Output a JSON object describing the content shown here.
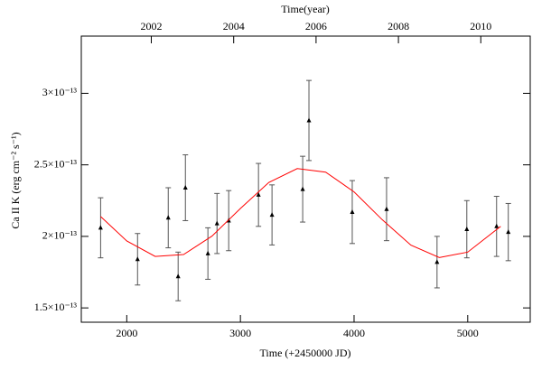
{
  "chart_data": {
    "type": "scatter",
    "x_label": "Time (+2450000 JD)",
    "y_label": "Ca II K (erg cm⁻² s⁻¹)",
    "x2_label": "Time(year)",
    "xlim": [
      1600,
      5550
    ],
    "xticks": [
      2000,
      3000,
      4000,
      5000
    ],
    "x2lim": [
      2000.3,
      2011.2
    ],
    "x2ticks": [
      2002,
      2004,
      2006,
      2008,
      2010
    ],
    "ylim": [
      1.4e-13,
      3.4e-13
    ],
    "yticks": [
      {
        "value": 1.5e-13,
        "label": "1.5×10⁻¹³"
      },
      {
        "value": 2e-13,
        "label": "2×10⁻¹³"
      },
      {
        "value": 2.5e-13,
        "label": "2.5×10⁻¹³"
      },
      {
        "value": 3e-13,
        "label": "3×10⁻¹³"
      }
    ],
    "series": [
      {
        "type": "errorbar",
        "color": "#000000",
        "x": [
          1770,
          2095,
          2365,
          2452,
          2516,
          2714,
          2794,
          2897,
          3159,
          3278,
          3548,
          3603,
          3984,
          4286,
          4730,
          4992,
          5254,
          5357
        ],
        "values": [
          2.06e-13,
          1.84e-13,
          2.13e-13,
          1.72e-13,
          2.34e-13,
          1.88e-13,
          2.09e-13,
          2.11e-13,
          2.29e-13,
          2.15e-13,
          2.33e-13,
          2.81e-13,
          2.17e-13,
          2.19e-13,
          1.82e-13,
          2.05e-13,
          2.07e-13,
          2.03e-13
        ],
        "errors": [
          2.1e-14,
          1.8e-14,
          2.1e-14,
          1.7e-14,
          2.3e-14,
          1.8e-14,
          2.1e-14,
          2.1e-14,
          2.2e-14,
          2.1e-14,
          2.3e-14,
          2.8e-14,
          2.2e-14,
          2.2e-14,
          1.8e-14,
          2e-14,
          2.1e-14,
          2e-14
        ]
      },
      {
        "type": "line",
        "color": "#ff0000",
        "x": [
          1770,
          2000,
          2250,
          2500,
          2750,
          3000,
          3250,
          3500,
          3750,
          4000,
          4250,
          4500,
          4750,
          5000,
          5290
        ],
        "values": [
          2.139e-13,
          1.968e-13,
          1.86e-13,
          1.873e-13,
          2.002e-13,
          2.195e-13,
          2.377e-13,
          2.474e-13,
          2.449e-13,
          2.311e-13,
          2.115e-13,
          1.939e-13,
          1.852e-13,
          1.89e-13,
          2.07e-13
        ]
      }
    ]
  }
}
